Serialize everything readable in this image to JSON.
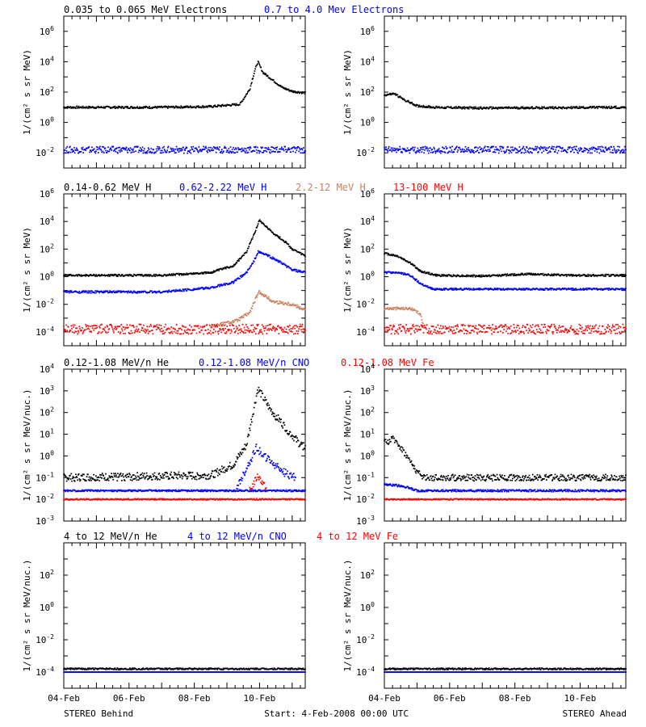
{
  "colors": {
    "black": "#000000",
    "blue": "#0000ff",
    "tan": "#c88060",
    "red": "#ff0000"
  },
  "footer": {
    "left": "STEREO Behind",
    "center": "Start:  4-Feb-2008 00:00 UTC",
    "right": "STEREO Ahead"
  },
  "chart_data": [
    {
      "row": 1,
      "side": "left",
      "type": "scatter",
      "yscale": "log",
      "ylim_exp": [
        -3,
        7
      ],
      "yticks_exp": [
        -2,
        0,
        2,
        4,
        6
      ],
      "ylabel": "1/(cm² s sr MeV)",
      "xticks": [
        "04-Feb",
        "06-Feb",
        "08-Feb",
        "10-Feb"
      ],
      "xlim_days": [
        0,
        7.4
      ],
      "headers": [
        {
          "text": "0.035 to 0.065 MeV Electrons",
          "color": "#000000"
        },
        {
          "text": "0.7 to 4.0 Mev Electrons",
          "color": "#0000ff"
        }
      ],
      "series": [
        {
          "color": "#000000",
          "points": [
            [
              0,
              1.0
            ],
            [
              1,
              1.0
            ],
            [
              2,
              1.0
            ],
            [
              3,
              1.0
            ],
            [
              4.5,
              1.05
            ],
            [
              5.4,
              1.2
            ],
            [
              5.7,
              2.2
            ],
            [
              5.85,
              3.4
            ],
            [
              5.95,
              4.0
            ],
            [
              6.1,
              3.3
            ],
            [
              6.4,
              2.8
            ],
            [
              6.7,
              2.3
            ],
            [
              7.0,
              2.05
            ],
            [
              7.4,
              1.95
            ]
          ],
          "noise": 0.07
        },
        {
          "color": "#0000ff",
          "points": [
            [
              0,
              -1.8
            ],
            [
              7.4,
              -1.8
            ]
          ],
          "noise": 0.22
        }
      ]
    },
    {
      "row": 1,
      "side": "right",
      "type": "scatter",
      "yscale": "log",
      "ylim_exp": [
        -3,
        7
      ],
      "yticks_exp": [
        -2,
        0,
        2,
        4,
        6
      ],
      "ylabel": "1/(cm² s sr MeV)",
      "xticks": [
        "04-Feb",
        "06-Feb",
        "08-Feb",
        "10-Feb"
      ],
      "xlim_days": [
        0,
        7.4
      ],
      "headers": [],
      "series": [
        {
          "color": "#000000",
          "points": [
            [
              0,
              1.8
            ],
            [
              0.3,
              1.9
            ],
            [
              0.6,
              1.5
            ],
            [
              1.0,
              1.1
            ],
            [
              1.5,
              1.0
            ],
            [
              3,
              0.95
            ],
            [
              7.4,
              1.0
            ]
          ],
          "noise": 0.07
        },
        {
          "color": "#0000ff",
          "points": [
            [
              0,
              -1.8
            ],
            [
              7.4,
              -1.8
            ]
          ],
          "noise": 0.22
        }
      ]
    },
    {
      "row": 2,
      "side": "left",
      "type": "scatter",
      "yscale": "log",
      "ylim_exp": [
        -5,
        6
      ],
      "yticks_exp": [
        -4,
        -2,
        0,
        2,
        4,
        6
      ],
      "ylabel": "1/(cm² s sr MeV)",
      "xticks": [
        "04-Feb",
        "06-Feb",
        "08-Feb",
        "10-Feb"
      ],
      "xlim_days": [
        0,
        7.4
      ],
      "headers": [
        {
          "text": "0.14-0.62 MeV H",
          "color": "#000000"
        },
        {
          "text": "0.62-2.22 MeV H",
          "color": "#0000ff"
        },
        {
          "text": "2.2-12 MeV H",
          "color": "#c88060"
        },
        {
          "text": "13-100 MeV H",
          "color": "#ff0000"
        }
      ],
      "series": [
        {
          "color": "#000000",
          "points": [
            [
              0,
              0.1
            ],
            [
              3,
              0.1
            ],
            [
              4.5,
              0.3
            ],
            [
              5.2,
              0.8
            ],
            [
              5.6,
              1.8
            ],
            [
              5.9,
              3.5
            ],
            [
              6.0,
              4.1
            ],
            [
              6.4,
              3.2
            ],
            [
              6.8,
              2.5
            ],
            [
              7.0,
              2.0
            ],
            [
              7.4,
              1.5
            ]
          ],
          "noise": 0.07
        },
        {
          "color": "#0000ff",
          "points": [
            [
              0,
              -1.1
            ],
            [
              3,
              -1.1
            ],
            [
              4.5,
              -0.8
            ],
            [
              5.2,
              -0.4
            ],
            [
              5.6,
              0.3
            ],
            [
              5.8,
              1.0
            ],
            [
              5.95,
              1.8
            ],
            [
              6.2,
              1.6
            ],
            [
              6.6,
              1.1
            ],
            [
              7.0,
              0.5
            ],
            [
              7.4,
              0.3
            ]
          ],
          "noise": 0.08
        },
        {
          "color": "#c88060",
          "points": [
            [
              4.5,
              -3.6
            ],
            [
              5.3,
              -3.2
            ],
            [
              5.7,
              -2.6
            ],
            [
              5.9,
              -1.5
            ],
            [
              6.0,
              -1.1
            ],
            [
              6.4,
              -1.8
            ],
            [
              7.0,
              -2.0
            ],
            [
              7.4,
              -2.4
            ]
          ],
          "noise": 0.12
        },
        {
          "color": "#ff0000",
          "points": [
            [
              0,
              -3.8
            ],
            [
              7.4,
              -3.8
            ]
          ],
          "noise": 0.35
        }
      ]
    },
    {
      "row": 2,
      "side": "right",
      "type": "scatter",
      "yscale": "log",
      "ylim_exp": [
        -5,
        6
      ],
      "yticks_exp": [
        -4,
        -2,
        0,
        2,
        4,
        6
      ],
      "ylabel": "1/(cm² s sr MeV)",
      "xticks": [
        "04-Feb",
        "06-Feb",
        "08-Feb",
        "10-Feb"
      ],
      "xlim_days": [
        0,
        7.4
      ],
      "headers": [],
      "series": [
        {
          "color": "#000000",
          "points": [
            [
              0,
              1.7
            ],
            [
              0.4,
              1.5
            ],
            [
              0.8,
              1.0
            ],
            [
              1.1,
              0.4
            ],
            [
              1.6,
              0.1
            ],
            [
              3,
              0.05
            ],
            [
              4.5,
              0.2
            ],
            [
              5.5,
              0.1
            ],
            [
              6.5,
              0.1
            ],
            [
              7.4,
              0.1
            ]
          ],
          "noise": 0.07
        },
        {
          "color": "#0000ff",
          "points": [
            [
              0,
              0.3
            ],
            [
              0.4,
              0.3
            ],
            [
              0.8,
              0.1
            ],
            [
              1.1,
              -0.5
            ],
            [
              1.5,
              -0.9
            ],
            [
              3,
              -0.9
            ],
            [
              7.4,
              -0.9
            ]
          ],
          "noise": 0.07
        },
        {
          "color": "#c88060",
          "points": [
            [
              0,
              -2.3
            ],
            [
              0.8,
              -2.3
            ],
            [
              1.1,
              -2.7
            ],
            [
              1.2,
              -3.5
            ]
          ],
          "noise": 0.1
        },
        {
          "color": "#ff0000",
          "points": [
            [
              0,
              -3.8
            ],
            [
              7.4,
              -3.8
            ]
          ],
          "noise": 0.35
        }
      ]
    },
    {
      "row": 3,
      "side": "left",
      "type": "scatter",
      "yscale": "log",
      "ylim_exp": [
        -3,
        4
      ],
      "yticks_exp": [
        -3,
        -2,
        -1,
        0,
        1,
        2,
        3,
        4
      ],
      "ylabel": "1/(cm² s sr MeV/nuc.)",
      "xticks": [
        "04-Feb",
        "06-Feb",
        "08-Feb",
        "10-Feb"
      ],
      "xlim_days": [
        0,
        7.4
      ],
      "headers": [
        {
          "text": "0.12-1.08 MeV/n He",
          "color": "#000000"
        },
        {
          "text": "0.12-1.08 MeV/n CNO",
          "color": "#0000ff"
        },
        {
          "text": "0.12-1.08 MeV Fe",
          "color": "#ff0000"
        }
      ],
      "series": [
        {
          "color": "#000000",
          "points": [
            [
              0,
              -1.0
            ],
            [
              4.5,
              -0.9
            ],
            [
              5.2,
              -0.4
            ],
            [
              5.6,
              0.5
            ],
            [
              5.8,
              2.0
            ],
            [
              5.95,
              3.1
            ],
            [
              6.3,
              2.2
            ],
            [
              6.8,
              1.3
            ],
            [
              7.2,
              0.6
            ],
            [
              7.4,
              0.4
            ]
          ],
          "noise": 0.18
        },
        {
          "color": "#0000ff",
          "points": [
            [
              5.3,
              -1.5
            ],
            [
              5.6,
              -0.6
            ],
            [
              5.9,
              0.4
            ],
            [
              6.2,
              -0.1
            ],
            [
              6.8,
              -0.8
            ],
            [
              7.1,
              -1.0
            ]
          ],
          "noise": 0.18
        },
        {
          "color": "#ff0000",
          "points": [
            [
              5.7,
              -1.6
            ],
            [
              5.95,
              -0.9
            ],
            [
              6.2,
              -1.5
            ]
          ],
          "noise": 0.15
        },
        {
          "color": "#0000ff",
          "points": [
            [
              0,
              -1.6
            ],
            [
              7.4,
              -1.6
            ]
          ],
          "noise": 0.04
        },
        {
          "color": "#ff0000",
          "points": [
            [
              0,
              -2.0
            ],
            [
              7.4,
              -2.0
            ]
          ],
          "noise": 0.03
        }
      ]
    },
    {
      "row": 3,
      "side": "right",
      "type": "scatter",
      "yscale": "log",
      "ylim_exp": [
        -3,
        4
      ],
      "yticks_exp": [
        -3,
        -2,
        -1,
        0,
        1,
        2,
        3,
        4
      ],
      "ylabel": "1/(cm² s sr MeV/nuc.)",
      "xticks": [
        "04-Feb",
        "06-Feb",
        "08-Feb",
        "10-Feb"
      ],
      "xlim_days": [
        0,
        7.4
      ],
      "headers": [],
      "series": [
        {
          "color": "#000000",
          "points": [
            [
              0,
              0.6
            ],
            [
              0.3,
              0.8
            ],
            [
              0.6,
              0.2
            ],
            [
              0.9,
              -0.5
            ],
            [
              1.1,
              -0.9
            ],
            [
              1.3,
              -1.0
            ],
            [
              7.4,
              -1.0
            ]
          ],
          "noise": 0.15
        },
        {
          "color": "#0000ff",
          "points": [
            [
              0,
              -1.3
            ],
            [
              0.6,
              -1.4
            ],
            [
              1.0,
              -1.6
            ],
            [
              7.4,
              -1.6
            ]
          ],
          "noise": 0.05
        },
        {
          "color": "#ff0000",
          "points": [
            [
              0,
              -2.0
            ],
            [
              7.4,
              -2.0
            ]
          ],
          "noise": 0.03
        }
      ]
    },
    {
      "row": 4,
      "side": "left",
      "type": "scatter",
      "yscale": "log",
      "ylim_exp": [
        -5,
        4
      ],
      "yticks_exp": [
        -4,
        -2,
        0,
        2
      ],
      "ylabel": "1/(cm² s sr MeV/nuc.)",
      "xticks": [
        "04-Feb",
        "06-Feb",
        "08-Feb",
        "10-Feb"
      ],
      "xlim_days": [
        0,
        7.4
      ],
      "headers": [
        {
          "text": "4 to 12 MeV/n He",
          "color": "#000000"
        },
        {
          "text": "4 to 12 MeV/n CNO",
          "color": "#0000ff"
        },
        {
          "text": "4 to 12 MeV Fe",
          "color": "#ff0000"
        }
      ],
      "series": [
        {
          "color": "#0000ff",
          "points": [
            [
              0,
              -4.0
            ],
            [
              7.4,
              -4.0
            ]
          ],
          "noise": 0.0
        },
        {
          "color": "#000000",
          "points": [
            [
              0,
              -3.8
            ],
            [
              7.4,
              -3.8
            ]
          ],
          "noise": 0.05
        }
      ]
    },
    {
      "row": 4,
      "side": "right",
      "type": "scatter",
      "yscale": "log",
      "ylim_exp": [
        -5,
        4
      ],
      "yticks_exp": [
        -4,
        -2,
        0,
        2
      ],
      "ylabel": "1/(cm² s sr MeV/nuc.)",
      "xticks": [
        "04-Feb",
        "06-Feb",
        "08-Feb",
        "10-Feb"
      ],
      "xlim_days": [
        0,
        7.4
      ],
      "headers": [],
      "series": [
        {
          "color": "#0000ff",
          "points": [
            [
              0,
              -4.0
            ],
            [
              7.4,
              -4.0
            ]
          ],
          "noise": 0.0
        },
        {
          "color": "#000000",
          "points": [
            [
              0,
              -3.8
            ],
            [
              7.4,
              -3.8
            ]
          ],
          "noise": 0.05
        }
      ]
    }
  ]
}
